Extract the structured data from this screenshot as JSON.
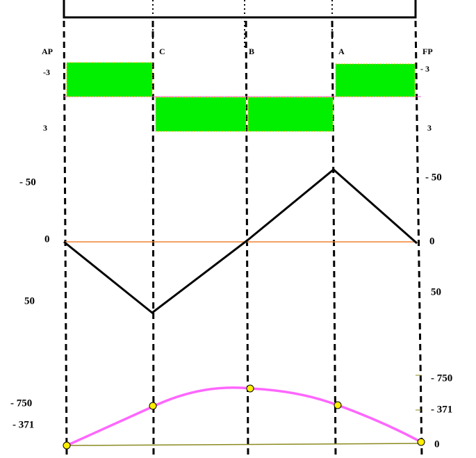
{
  "stations": [
    "AP",
    "C",
    "B",
    "A",
    "FP"
  ],
  "load": {
    "left_labels": [
      "-3",
      "3"
    ],
    "right_labels": [
      "- 3",
      "3"
    ]
  },
  "shear": {
    "left_labels": [
      "- 50",
      "0",
      "50"
    ],
    "right_labels": [
      "- 50",
      "0",
      "50"
    ]
  },
  "moment": {
    "left_labels": [
      "- 750",
      "- 371"
    ],
    "right_labels": [
      "- 750",
      "- 371",
      "0"
    ]
  }
}
